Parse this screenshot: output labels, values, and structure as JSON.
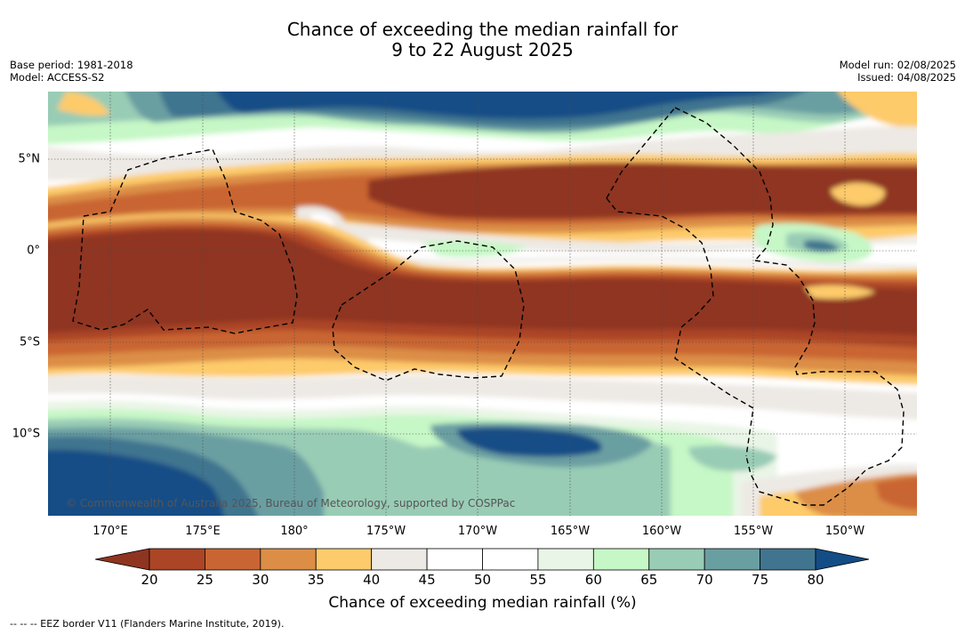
{
  "title_line1": "Chance of exceeding the median rainfall for",
  "title_line2": "9 to 22 August 2025",
  "meta_left": {
    "base_period": "Base period: 1981-2018",
    "model": "Model: ACCESS-S2"
  },
  "meta_right": {
    "model_run": "Model run: 02/08/2025",
    "issued": "Issued: 04/08/2025"
  },
  "lat_labels": [
    "5°N",
    "0°",
    "5°S",
    "10°S"
  ],
  "lon_labels": [
    "170°E",
    "175°E",
    "180°",
    "175°W",
    "170°W",
    "165°W",
    "160°W",
    "155°W",
    "150°W"
  ],
  "copyright": "© Commonwealth of Australia 2025, Bureau of Meteorology, supported by COSPPac",
  "colorbar": {
    "ticks": [
      "20",
      "25",
      "30",
      "35",
      "40",
      "45",
      "50",
      "55",
      "60",
      "65",
      "70",
      "75",
      "80"
    ],
    "low_extend_color": "#8f3420",
    "high_extend_color": "#134d86",
    "colors": [
      "#ab4526",
      "#c96533",
      "#dc8e47",
      "#fdcb6b",
      "#ede9e4",
      "#ffffff",
      "#ffffff",
      "#e9f5e6",
      "#c6f7c6",
      "#99ccb5",
      "#6a9fa2",
      "#41758f"
    ]
  },
  "colorbar_title": "Chance of exceeding median rainfall (%)",
  "footnote": "--  --  -- EEZ border V11 (Flanders Marine Institute, 2019)."
}
